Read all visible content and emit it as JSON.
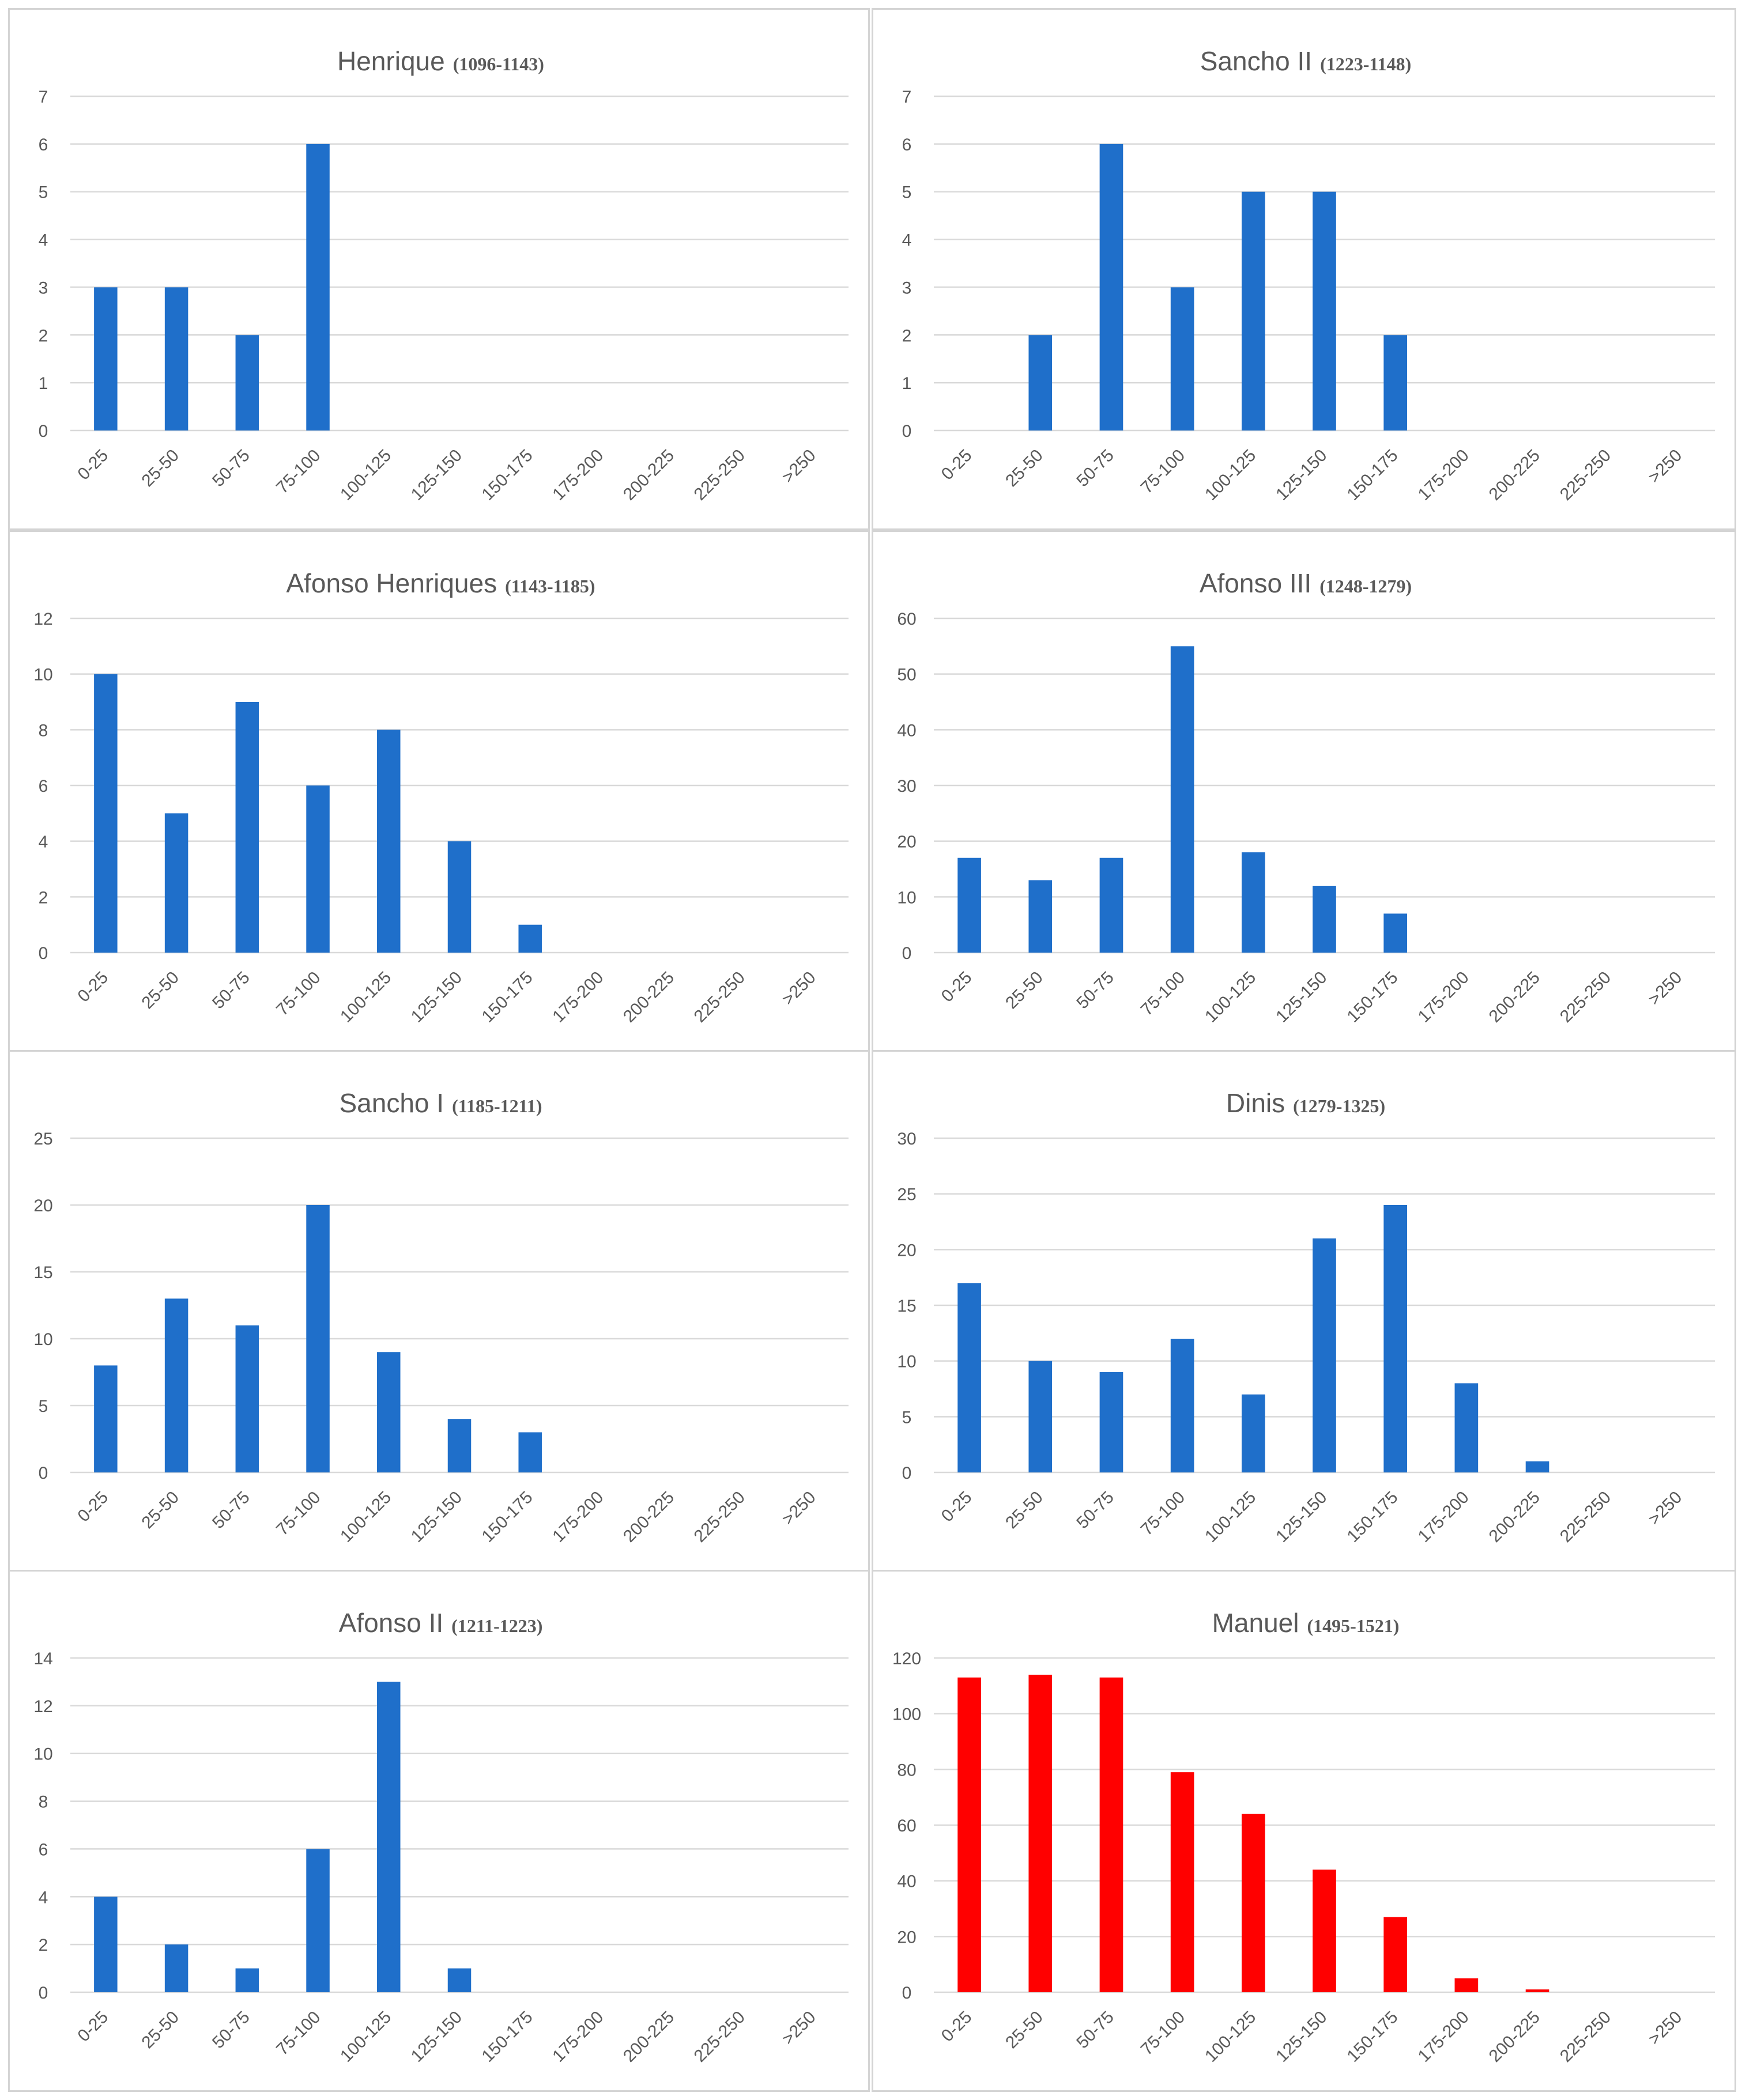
{
  "chart_data": [
    {
      "type": "bar",
      "title": "Henrique",
      "subtitle": "(1096-1143)",
      "categories": [
        "0-25",
        "25-50",
        "50-75",
        "75-100",
        "100-125",
        "125-150",
        "150-175",
        "175-200",
        "200-225",
        "225-250",
        ">250"
      ],
      "values": [
        3,
        3,
        2,
        6,
        0,
        0,
        0,
        0,
        0,
        0,
        0
      ],
      "ylim": [
        0,
        7
      ],
      "yticks": [
        0,
        1,
        2,
        3,
        4,
        5,
        6,
        7
      ],
      "color": "#1f6fca",
      "grid": true,
      "legend": "none"
    },
    {
      "type": "bar",
      "title": "Sancho II",
      "subtitle": "(1223-1148)",
      "categories": [
        "0-25",
        "25-50",
        "50-75",
        "75-100",
        "100-125",
        "125-150",
        "150-175",
        "175-200",
        "200-225",
        "225-250",
        ">250"
      ],
      "values": [
        0,
        2,
        6,
        3,
        5,
        5,
        2,
        0,
        0,
        0,
        0
      ],
      "ylim": [
        0,
        7
      ],
      "yticks": [
        0,
        1,
        2,
        3,
        4,
        5,
        6,
        7
      ],
      "color": "#1f6fca",
      "grid": true,
      "legend": "none"
    },
    {
      "type": "bar",
      "title": "Afonso Henriques",
      "subtitle": "(1143-1185)",
      "categories": [
        "0-25",
        "25-50",
        "50-75",
        "75-100",
        "100-125",
        "125-150",
        "150-175",
        "175-200",
        "200-225",
        "225-250",
        ">250"
      ],
      "values": [
        10,
        5,
        9,
        6,
        8,
        4,
        1,
        0,
        0,
        0,
        0
      ],
      "ylim": [
        0,
        12
      ],
      "yticks": [
        0,
        2,
        4,
        6,
        8,
        10,
        12
      ],
      "color": "#1f6fca",
      "grid": true,
      "legend": "none"
    },
    {
      "type": "bar",
      "title": "Afonso III",
      "subtitle": "(1248-1279)",
      "categories": [
        "0-25",
        "25-50",
        "50-75",
        "75-100",
        "100-125",
        "125-150",
        "150-175",
        "175-200",
        "200-225",
        "225-250",
        ">250"
      ],
      "values": [
        17,
        13,
        17,
        55,
        18,
        12,
        7,
        0,
        0,
        0,
        0
      ],
      "ylim": [
        0,
        60
      ],
      "yticks": [
        0,
        10,
        20,
        30,
        40,
        50,
        60
      ],
      "color": "#1f6fca",
      "grid": true,
      "legend": "none"
    },
    {
      "type": "bar",
      "title": "Sancho I",
      "subtitle": "(1185-1211)",
      "categories": [
        "0-25",
        "25-50",
        "50-75",
        "75-100",
        "100-125",
        "125-150",
        "150-175",
        "175-200",
        "200-225",
        "225-250",
        ">250"
      ],
      "values": [
        8,
        13,
        11,
        20,
        9,
        4,
        3,
        0,
        0,
        0,
        0
      ],
      "ylim": [
        0,
        25
      ],
      "yticks": [
        0,
        5,
        10,
        15,
        20,
        25
      ],
      "color": "#1f6fca",
      "grid": true,
      "legend": "none"
    },
    {
      "type": "bar",
      "title": "Dinis",
      "subtitle": "(1279-1325)",
      "categories": [
        "0-25",
        "25-50",
        "50-75",
        "75-100",
        "100-125",
        "125-150",
        "150-175",
        "175-200",
        "200-225",
        "225-250",
        ">250"
      ],
      "values": [
        17,
        10,
        9,
        12,
        7,
        21,
        24,
        8,
        1,
        0,
        0
      ],
      "ylim": [
        0,
        30
      ],
      "yticks": [
        0,
        5,
        10,
        15,
        20,
        25,
        30
      ],
      "color": "#1f6fca",
      "grid": true,
      "legend": "none"
    },
    {
      "type": "bar",
      "title": "Afonso II",
      "subtitle": "(1211-1223)",
      "categories": [
        "0-25",
        "25-50",
        "50-75",
        "75-100",
        "100-125",
        "125-150",
        "150-175",
        "175-200",
        "200-225",
        "225-250",
        ">250"
      ],
      "values": [
        4,
        2,
        1,
        6,
        13,
        1,
        0,
        0,
        0,
        0,
        0
      ],
      "ylim": [
        0,
        14
      ],
      "yticks": [
        0,
        2,
        4,
        6,
        8,
        10,
        12,
        14
      ],
      "color": "#1f6fca",
      "grid": true,
      "legend": "none"
    },
    {
      "type": "bar",
      "title": "Manuel",
      "subtitle": "(1495-1521)",
      "categories": [
        "0-25",
        "25-50",
        "50-75",
        "75-100",
        "100-125",
        "125-150",
        "150-175",
        "175-200",
        "200-225",
        "225-250",
        ">250"
      ],
      "values": [
        113,
        114,
        113,
        79,
        64,
        44,
        27,
        5,
        1,
        0,
        0
      ],
      "ylim": [
        0,
        120
      ],
      "yticks": [
        0,
        20,
        40,
        60,
        80,
        100,
        120
      ],
      "color": "#ff0000",
      "grid": true,
      "legend": "none"
    }
  ]
}
